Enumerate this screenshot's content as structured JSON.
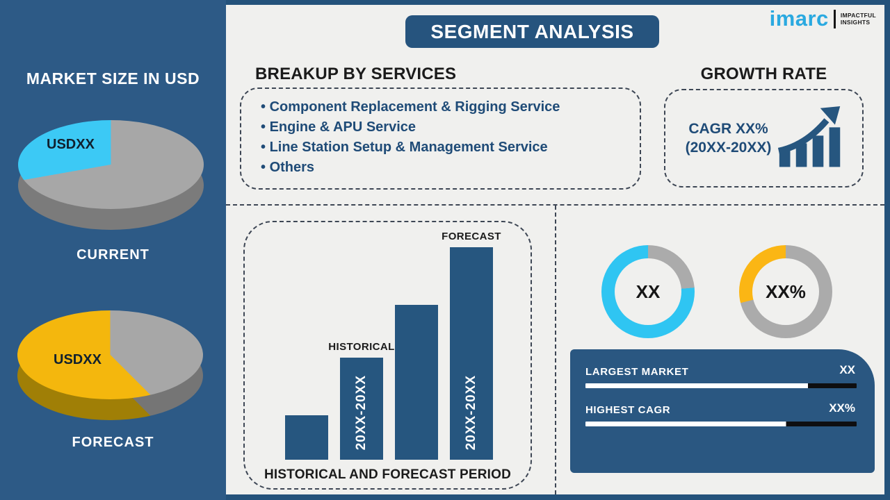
{
  "header": {
    "title": "SEGMENT ANALYSIS"
  },
  "logo": {
    "brand": "imarc",
    "tagline_line1": "IMPACTFUL",
    "tagline_line2": "INSIGHTS",
    "brand_color": "#2aa9e0"
  },
  "sidebar": {
    "title": "MARKET SIZE IN USD"
  },
  "services": {
    "heading": "BREAKUP BY SERVICES",
    "items": [
      "Component Replacement & Rigging Service",
      "Engine & APU Service",
      "Line Station Setup & Management Service",
      "Others"
    ]
  },
  "growth": {
    "heading": "GROWTH RATE",
    "cagr_line1": "CAGR XX%",
    "cagr_line2": "(20XX-20XX)"
  },
  "insights": {
    "rows": [
      {
        "label": "LARGEST MARKET",
        "value": "XX",
        "fill_pct": 82
      },
      {
        "label": "HIGHEST CAGR",
        "value": "XX%",
        "fill_pct": 74
      }
    ],
    "bar_fill": "#ffffff",
    "bar_rest": "#0e0e10"
  },
  "colors": {
    "navy_sidebar": "#2d5a86",
    "navy_component": "#26567f",
    "navy_text": "#1f4b77",
    "edge_strip": "#24527b",
    "background": "#f0f0ee",
    "cyan": "#2fc5f2",
    "yellow": "#fbb614",
    "gray": "#ababab",
    "heading_dark": "#1b1b1b"
  },
  "chart_data": [
    {
      "id": "pie-current",
      "type": "pie",
      "title": "CURRENT",
      "value_label": "USDXX",
      "segments": [
        {
          "name": "rest-of-market",
          "color": "#a7a7a7",
          "angle": 260,
          "approx_pct": 72
        },
        {
          "name": "highlight-segment",
          "color": "#3cc9f5",
          "angle": 100,
          "approx_pct": 28
        }
      ],
      "side_segments": [
        {
          "name": "rest-side",
          "color": "#7b7b7b",
          "angle": 360
        }
      ]
    },
    {
      "id": "pie-forecast",
      "type": "pie",
      "title": "FORECAST",
      "value_label": "USDXX",
      "segments": [
        {
          "name": "rest-of-market",
          "color": "#a7a7a7",
          "angle": 135,
          "approx_pct": 37
        },
        {
          "name": "highlight-segment",
          "color": "#f4b70d",
          "angle": 225,
          "approx_pct": 63
        }
      ],
      "side_segments": [
        {
          "name": "rest-side",
          "color": "#757575",
          "angle": 135
        },
        {
          "name": "highlight-side",
          "color": "#a07f06",
          "angle": 225
        }
      ]
    },
    {
      "id": "period-bars",
      "type": "bar",
      "caption": "HISTORICAL AND FORECAST PERIOD",
      "bar_color": "#26567f",
      "max_value": 4.8,
      "bars": [
        {
          "value": 1.0
        },
        {
          "value": 2.3,
          "top_label": "HISTORICAL",
          "in_label": "20XX-20XX"
        },
        {
          "value": 3.5
        },
        {
          "value": 4.8,
          "top_label": "FORECAST",
          "in_label": "20XX-20XX"
        }
      ]
    },
    {
      "id": "donut-market",
      "type": "donut",
      "center_label": "XX",
      "segments": [
        {
          "name": "remainder",
          "color": "#ababab",
          "angle": 85,
          "approx_pct": 24
        },
        {
          "name": "largest-market-share",
          "color": "#2fc5f2",
          "angle": 275,
          "approx_pct": 76
        }
      ]
    },
    {
      "id": "donut-cagr",
      "type": "donut",
      "center_label": "XX%",
      "segments": [
        {
          "name": "remainder",
          "color": "#ababab",
          "angle": 256,
          "approx_pct": 71
        },
        {
          "name": "highest-cagr-share",
          "color": "#fbb614",
          "angle": 104,
          "approx_pct": 29
        }
      ]
    }
  ]
}
